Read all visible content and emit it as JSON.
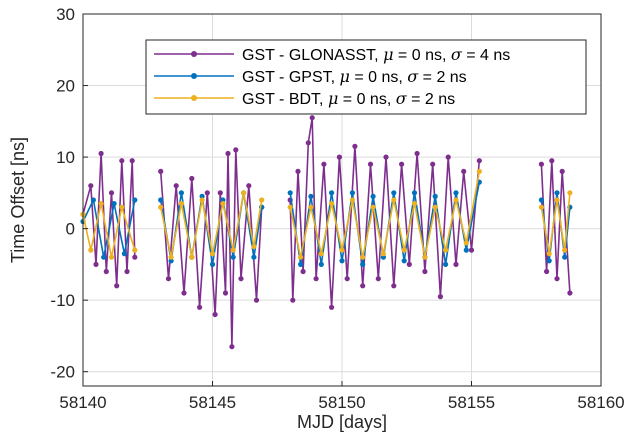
{
  "chart_data": {
    "type": "line",
    "title": "",
    "xlabel": "MJD [days]",
    "ylabel": "Time Offset [ns]",
    "xlim": [
      58140,
      58160
    ],
    "ylim": [
      -22,
      30
    ],
    "xticks": [
      58140,
      58145,
      58150,
      58155,
      58160
    ],
    "yticks": [
      -20,
      -10,
      0,
      10,
      20,
      30
    ],
    "xtick_labels": [
      "58140",
      "58145",
      "58150",
      "58155",
      "58160"
    ],
    "ytick_labels": [
      "-20",
      "-10",
      "0",
      "10",
      "20",
      "30"
    ],
    "grid": true,
    "legend_position": "top-right",
    "data_gaps_mjd": [
      [
        58142.1,
        58142.9
      ],
      [
        58147.0,
        58147.9
      ],
      [
        58155.4,
        58157.5
      ]
    ],
    "series": [
      {
        "name": "GST - GLONASST",
        "legend_suffix": ", μ = 0 ns, σ = 4 ns",
        "color": "#7E2F8E",
        "mean_ns": 0,
        "std_ns": 4,
        "points": [
          [
            58140.0,
            2
          ],
          [
            58140.3,
            6
          ],
          [
            58140.5,
            -5
          ],
          [
            58140.7,
            10.5
          ],
          [
            58140.9,
            -6
          ],
          [
            58141.1,
            5
          ],
          [
            58141.3,
            -8
          ],
          [
            58141.5,
            9.5
          ],
          [
            58141.7,
            -6
          ],
          [
            58141.9,
            9.5
          ],
          [
            58142.0,
            -4
          ],
          [
            58143.0,
            8
          ],
          [
            58143.3,
            -7
          ],
          [
            58143.6,
            6
          ],
          [
            58143.9,
            -9
          ],
          [
            58144.2,
            7
          ],
          [
            58144.5,
            -11
          ],
          [
            58144.8,
            5
          ],
          [
            58145.1,
            -12
          ],
          [
            58145.3,
            5
          ],
          [
            58145.5,
            -9
          ],
          [
            58145.6,
            10.5
          ],
          [
            58145.75,
            -16.5
          ],
          [
            58145.9,
            11
          ],
          [
            58146.1,
            -7
          ],
          [
            58146.4,
            6
          ],
          [
            58146.7,
            -10
          ],
          [
            58146.9,
            3
          ],
          [
            58148.0,
            4
          ],
          [
            58148.1,
            -10
          ],
          [
            58148.3,
            8
          ],
          [
            58148.5,
            -6
          ],
          [
            58148.7,
            12
          ],
          [
            58148.85,
            15.5
          ],
          [
            58149.0,
            -7
          ],
          [
            58149.3,
            9
          ],
          [
            58149.6,
            -11
          ],
          [
            58149.9,
            10
          ],
          [
            58150.2,
            -7
          ],
          [
            58150.5,
            11.5
          ],
          [
            58150.8,
            -8
          ],
          [
            58151.1,
            9
          ],
          [
            58151.4,
            -7
          ],
          [
            58151.7,
            10
          ],
          [
            58152.0,
            -8
          ],
          [
            58152.3,
            9
          ],
          [
            58152.6,
            -5
          ],
          [
            58152.9,
            10.5
          ],
          [
            58153.2,
            -6
          ],
          [
            58153.5,
            9
          ],
          [
            58153.8,
            -9.5
          ],
          [
            58154.1,
            10
          ],
          [
            58154.4,
            -5
          ],
          [
            58154.7,
            8
          ],
          [
            58155.0,
            -3
          ],
          [
            58155.3,
            9.5
          ],
          [
            58157.7,
            9
          ],
          [
            58157.9,
            -6
          ],
          [
            58158.1,
            9.5
          ],
          [
            58158.3,
            -7
          ],
          [
            58158.5,
            8
          ],
          [
            58158.8,
            -9
          ]
        ]
      },
      {
        "name": "GST - GPST",
        "legend_suffix": ", μ = 0 ns, σ = 2 ns",
        "color": "#0072BD",
        "mean_ns": 0,
        "std_ns": 2,
        "points": [
          [
            58140.0,
            1
          ],
          [
            58140.4,
            4
          ],
          [
            58140.8,
            -4
          ],
          [
            58141.2,
            3.5
          ],
          [
            58141.6,
            -3.5
          ],
          [
            58142.0,
            4
          ],
          [
            58143.0,
            4
          ],
          [
            58143.4,
            -4.5
          ],
          [
            58143.8,
            5
          ],
          [
            58144.2,
            -4
          ],
          [
            58144.6,
            4.5
          ],
          [
            58145.0,
            -5
          ],
          [
            58145.4,
            4
          ],
          [
            58145.8,
            -4
          ],
          [
            58146.2,
            5
          ],
          [
            58146.6,
            -4
          ],
          [
            58146.9,
            3
          ],
          [
            58148.0,
            5
          ],
          [
            58148.4,
            -5
          ],
          [
            58148.8,
            4.5
          ],
          [
            58149.2,
            -5
          ],
          [
            58149.6,
            5
          ],
          [
            58150.0,
            -4.5
          ],
          [
            58150.4,
            5
          ],
          [
            58150.8,
            -5
          ],
          [
            58151.2,
            4.5
          ],
          [
            58151.6,
            -4
          ],
          [
            58152.0,
            5
          ],
          [
            58152.4,
            -4.5
          ],
          [
            58152.8,
            5
          ],
          [
            58153.2,
            -4
          ],
          [
            58153.6,
            4.5
          ],
          [
            58154.0,
            -5
          ],
          [
            58154.4,
            5
          ],
          [
            58154.8,
            -3
          ],
          [
            58155.3,
            6.5
          ],
          [
            58157.7,
            4
          ],
          [
            58158.0,
            -4.5
          ],
          [
            58158.3,
            5
          ],
          [
            58158.6,
            -4
          ],
          [
            58158.8,
            3
          ]
        ]
      },
      {
        "name": "GST - BDT",
        "legend_suffix": ", μ = 0 ns, σ = 2 ns",
        "color": "#EDB120",
        "mean_ns": 0,
        "std_ns": 2,
        "points": [
          [
            58140.0,
            2
          ],
          [
            58140.3,
            -3
          ],
          [
            58140.7,
            3.5
          ],
          [
            58141.1,
            -4
          ],
          [
            58141.5,
            3
          ],
          [
            58142.0,
            -3
          ],
          [
            58143.0,
            3
          ],
          [
            58143.4,
            -4
          ],
          [
            58143.8,
            3.5
          ],
          [
            58144.2,
            -4
          ],
          [
            58144.6,
            4
          ],
          [
            58145.0,
            -3.5
          ],
          [
            58145.4,
            3.5
          ],
          [
            58145.8,
            -3
          ],
          [
            58146.2,
            5
          ],
          [
            58146.6,
            -2.5
          ],
          [
            58146.9,
            4
          ],
          [
            58148.0,
            3
          ],
          [
            58148.4,
            -4
          ],
          [
            58148.8,
            3
          ],
          [
            58149.2,
            -3.5
          ],
          [
            58149.6,
            3.5
          ],
          [
            58150.0,
            -3
          ],
          [
            58150.4,
            4
          ],
          [
            58150.8,
            -4
          ],
          [
            58151.2,
            3
          ],
          [
            58151.6,
            -3.5
          ],
          [
            58152.0,
            4
          ],
          [
            58152.4,
            -3
          ],
          [
            58152.8,
            3.5
          ],
          [
            58153.2,
            -4
          ],
          [
            58153.6,
            3
          ],
          [
            58154.0,
            -3
          ],
          [
            58154.4,
            4
          ],
          [
            58154.8,
            -2
          ],
          [
            58155.3,
            8
          ],
          [
            58157.7,
            3
          ],
          [
            58158.0,
            -3.5
          ],
          [
            58158.3,
            4
          ],
          [
            58158.6,
            -3
          ],
          [
            58158.8,
            5
          ]
        ]
      }
    ]
  }
}
